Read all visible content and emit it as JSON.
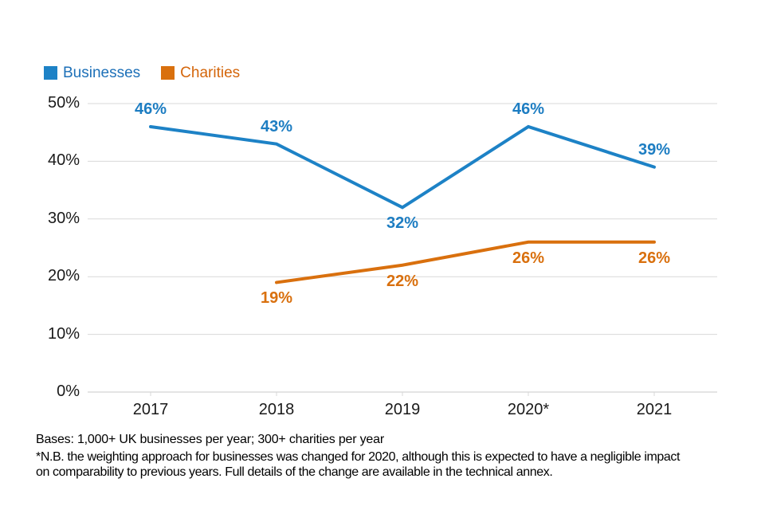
{
  "chart_data": {
    "type": "line",
    "categories": [
      "2017",
      "2018",
      "2019",
      "2020*",
      "2021"
    ],
    "series": [
      {
        "name": "Businesses",
        "color": "#1d82c6",
        "label_color": "#1d7dc2",
        "legend_text_color": "#1d70b8",
        "values": [
          46,
          43,
          32,
          46,
          39
        ],
        "label_positions": [
          "above",
          "above",
          "below",
          "above",
          "above"
        ]
      },
      {
        "name": "Charities",
        "color": "#d9700e",
        "label_color": "#d9700e",
        "legend_text_color": "#d4660b",
        "values": [
          null,
          19,
          22,
          26,
          26
        ],
        "label_positions": [
          null,
          "below",
          "below",
          "below",
          "below"
        ]
      }
    ],
    "title": "",
    "xlabel": "",
    "ylabel": "",
    "ylim": [
      0,
      50
    ],
    "y_ticks": [
      {
        "value": 0,
        "label": "0%"
      },
      {
        "value": 10,
        "label": "10%"
      },
      {
        "value": 20,
        "label": "20%"
      },
      {
        "value": 30,
        "label": "30%"
      },
      {
        "value": 40,
        "label": "40%"
      },
      {
        "value": 50,
        "label": "50%"
      }
    ],
    "grid": true,
    "gridline_color": "#d9d9d9",
    "axis_line_color": "#c9c9c9",
    "legend_position": "top-left",
    "data_label_format": "{v}%"
  },
  "footer": {
    "bases": "Bases: 1,000+ UK businesses per year; 300+ charities per year",
    "note_lines": [
      "*N.B. the weighting approach for businesses was changed for 2020, although this is expected to have a negligible impact",
      "on comparability to previous years. Full details of the change are available in the technical annex."
    ]
  }
}
